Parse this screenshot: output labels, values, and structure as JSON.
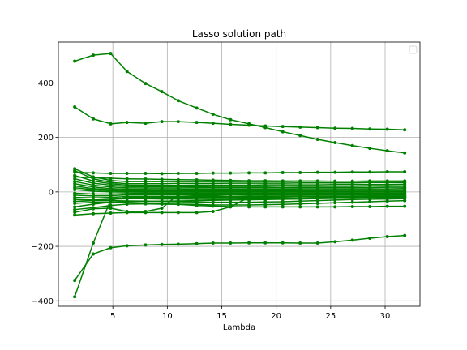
{
  "chart_data": {
    "type": "line",
    "title": "Lasso solution path",
    "xlabel": "Lambda",
    "ylabel": "",
    "xlim": [
      0,
      33.2
    ],
    "ylim": [
      -420,
      550
    ],
    "xticks": [
      5,
      10,
      15,
      20,
      25,
      30
    ],
    "yticks": [
      -400,
      -200,
      0,
      200,
      400
    ],
    "grid": true,
    "legend": "top-right",
    "line_color": "#008000",
    "x": [
      1.5,
      3.2,
      4.8,
      6.3,
      8.0,
      9.5,
      11.0,
      12.7,
      14.2,
      15.8,
      17.5,
      19.0,
      20.6,
      22.2,
      23.8,
      25.4,
      27.0,
      28.6,
      30.2,
      31.8
    ],
    "series": [
      {
        "values": [
          480,
          502,
          508,
          442,
          398,
          368,
          335,
          308,
          285,
          265,
          250,
          236,
          221,
          207,
          193,
          181,
          170,
          160,
          151,
          143
        ]
      },
      {
        "values": [
          312,
          268,
          250,
          255,
          252,
          258,
          258,
          255,
          252,
          248,
          245,
          242,
          240,
          238,
          236,
          234,
          233,
          231,
          230,
          228
        ]
      },
      {
        "values": [
          72,
          70,
          68,
          68,
          68,
          67,
          68,
          68,
          69,
          69,
          70,
          70,
          71,
          71,
          72,
          72,
          73,
          73,
          74,
          74
        ]
      },
      {
        "values": [
          85,
          55,
          42,
          38,
          38,
          38,
          38,
          38,
          38,
          38,
          38,
          38,
          38,
          39,
          39,
          39,
          39,
          40,
          40,
          40
        ]
      },
      {
        "values": [
          78,
          48,
          35,
          30,
          30,
          30,
          31,
          31,
          31,
          32,
          32,
          32,
          32,
          33,
          33,
          33,
          33,
          34,
          34,
          34
        ]
      },
      {
        "values": [
          60,
          40,
          30,
          25,
          24,
          24,
          24,
          25,
          25,
          25,
          25,
          26,
          26,
          26,
          26,
          27,
          27,
          27,
          27,
          28
        ]
      },
      {
        "values": [
          48,
          32,
          25,
          20,
          19,
          19,
          19,
          19,
          20,
          20,
          20,
          20,
          21,
          21,
          21,
          21,
          21,
          22,
          22,
          22
        ]
      },
      {
        "values": [
          38,
          25,
          18,
          15,
          14,
          14,
          14,
          15,
          15,
          15,
          15,
          15,
          15,
          16,
          16,
          16,
          16,
          16,
          17,
          17
        ]
      },
      {
        "values": [
          30,
          18,
          12,
          10,
          9,
          9,
          9,
          10,
          10,
          10,
          10,
          10,
          10,
          11,
          11,
          11,
          11,
          11,
          11,
          12
        ]
      },
      {
        "values": [
          22,
          12,
          8,
          6,
          5,
          5,
          5,
          5,
          6,
          6,
          6,
          6,
          6,
          6,
          6,
          7,
          7,
          7,
          7,
          7
        ]
      },
      {
        "values": [
          15,
          8,
          4,
          2,
          2,
          2,
          2,
          2,
          2,
          2,
          3,
          3,
          3,
          3,
          3,
          3,
          3,
          3,
          3,
          3
        ]
      },
      {
        "values": [
          8,
          3,
          0,
          -1,
          -1,
          -1,
          -1,
          -1,
          -1,
          -1,
          -1,
          -1,
          -1,
          -1,
          -1,
          -1,
          -1,
          -1,
          -1,
          -1
        ]
      },
      {
        "values": [
          -5,
          -8,
          -8,
          -6,
          -5,
          -5,
          -5,
          -5,
          -5,
          -5,
          -5,
          -5,
          -5,
          -5,
          -5,
          -5,
          -5,
          -5,
          -5,
          -5
        ]
      },
      {
        "values": [
          -12,
          -15,
          -14,
          -11,
          -10,
          -10,
          -10,
          -10,
          -10,
          -10,
          -10,
          -10,
          -10,
          -10,
          -10,
          -10,
          -10,
          -10,
          -10,
          -10
        ]
      },
      {
        "values": [
          -20,
          -22,
          -20,
          -17,
          -16,
          -16,
          -16,
          -16,
          -16,
          -16,
          -15,
          -15,
          -15,
          -15,
          -15,
          -15,
          -15,
          -15,
          -15,
          -15
        ]
      },
      {
        "values": [
          -28,
          -30,
          -27,
          -25,
          -25,
          -26,
          -26,
          -27,
          -27,
          -27,
          -26,
          -25,
          -24,
          -23,
          -22,
          -21,
          -20,
          -20,
          -20,
          -20
        ]
      },
      {
        "values": [
          -35,
          -32,
          -32,
          -33,
          -34,
          -35,
          -36,
          -37,
          -38,
          -38,
          -38,
          -37,
          -36,
          -34,
          -32,
          -30,
          -28,
          -27,
          -26,
          -25
        ]
      },
      {
        "values": [
          -42,
          -38,
          -38,
          -40,
          -42,
          -44,
          -45,
          -46,
          -48,
          -48,
          -48,
          -47,
          -46,
          -44,
          -42,
          -40,
          -38,
          -36,
          -34,
          -32
        ]
      },
      {
        "values": [
          -65,
          -58,
          -50,
          -45,
          -44,
          -45,
          -46,
          -50,
          -52,
          -54,
          -55,
          -55,
          -55,
          -55,
          -55,
          -55,
          -54,
          -54,
          -53,
          -53
        ]
      },
      {
        "values": [
          -75,
          -62,
          -60,
          -72,
          -72,
          -60,
          -10,
          -12,
          -12,
          -10,
          -10,
          -10,
          -9,
          -9,
          -9,
          -8,
          -8,
          -8,
          -8,
          -8
        ]
      },
      {
        "values": [
          -85,
          -80,
          -78,
          -76,
          -76,
          -76,
          -76,
          -76,
          -72,
          -55,
          -20,
          -18,
          -17,
          -17,
          -16,
          -16,
          -16,
          -15,
          -15,
          -15
        ]
      },
      {
        "values": [
          -385,
          -188,
          -30,
          -20,
          -20,
          -20,
          -20,
          -20,
          -20,
          -19,
          -19,
          -19,
          -19,
          -18,
          -18,
          -18,
          -18,
          -18,
          -18,
          -18
        ]
      },
      {
        "values": [
          -325,
          -228,
          -205,
          -198,
          -195,
          -193,
          -192,
          -190,
          -188,
          -188,
          -187,
          -187,
          -187,
          -188,
          -188,
          -183,
          -177,
          -170,
          -164,
          -160
        ]
      },
      {
        "values": [
          55,
          52,
          50,
          48,
          47,
          46,
          45,
          44,
          43,
          42,
          41,
          41,
          40,
          40,
          40,
          39,
          39,
          39,
          39,
          38
        ]
      },
      {
        "values": [
          -55,
          -45,
          -38,
          -36,
          -35,
          -34,
          -33,
          -32,
          -31,
          -30,
          -29,
          -28,
          -27,
          -26,
          -25,
          -24,
          -23,
          -22,
          -21,
          -20
        ]
      }
    ]
  }
}
